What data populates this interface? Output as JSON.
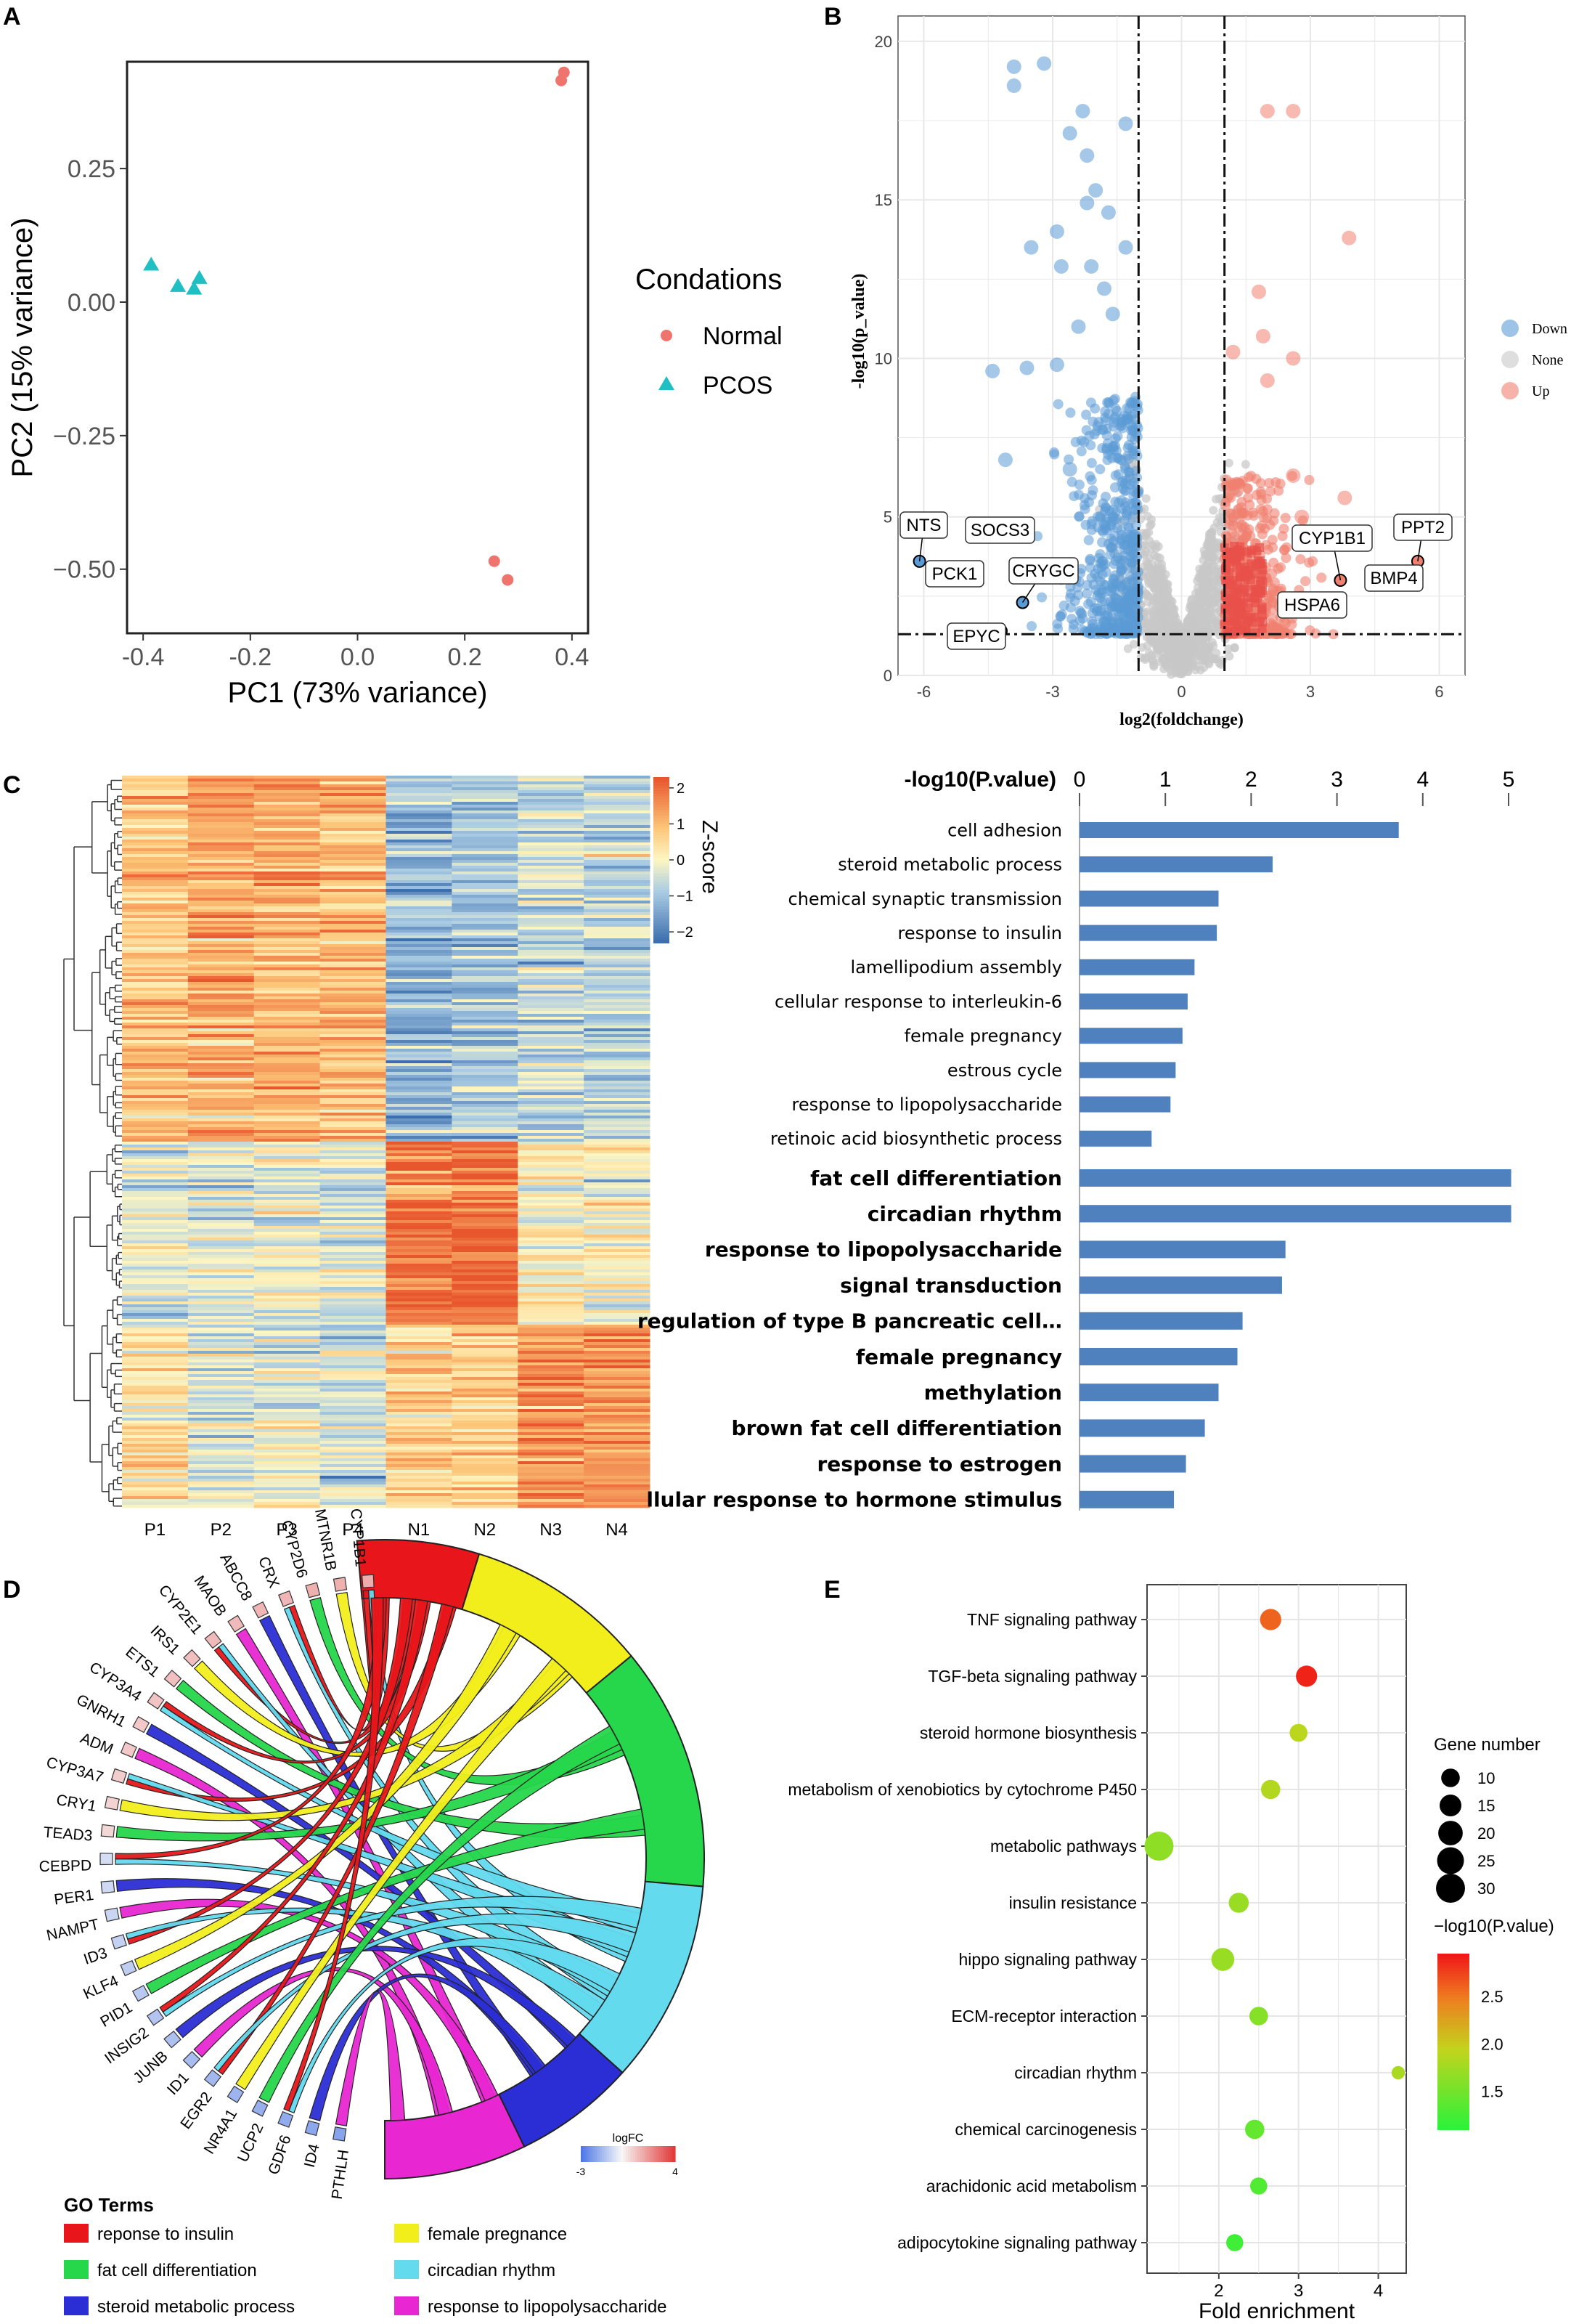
{
  "panel_letters": [
    "A",
    "B",
    "C",
    "D",
    "E"
  ],
  "chart_data": [
    {
      "panel": "A",
      "type": "scatter",
      "xlabel": "PC1 (73% variance)",
      "ylabel": "PC2 (15% variance)",
      "xlim": [
        -0.43,
        0.43
      ],
      "ylim": [
        -0.62,
        0.45
      ],
      "xticks": [
        -0.4,
        -0.2,
        0.0,
        0.2,
        0.4
      ],
      "xtick_labels": [
        "-0.4",
        "-0.2",
        "0.0",
        "0.2",
        "0.4"
      ],
      "yticks": [
        0.25,
        0.0,
        -0.25,
        -0.5
      ],
      "ytick_labels": [
        "0.25",
        "0.00",
        "−0.25",
        "−0.50"
      ],
      "legend_title": "Condations",
      "series": [
        {
          "name": "Normal",
          "shape": "circle",
          "color": "#F0746E",
          "points": [
            [
              0.385,
              0.43
            ],
            [
              0.38,
              0.415
            ],
            [
              0.255,
              -0.485
            ],
            [
              0.28,
              -0.52
            ]
          ]
        },
        {
          "name": "PCOS",
          "shape": "triangle",
          "color": "#1FBFC3",
          "points": [
            [
              -0.385,
              0.07
            ],
            [
              -0.335,
              0.03
            ],
            [
              -0.305,
              0.025
            ],
            [
              -0.295,
              0.045
            ]
          ]
        }
      ]
    },
    {
      "panel": "B",
      "type": "scatter",
      "xlabel": "log2(foldchange)",
      "ylabel": "-log10(p_value)",
      "xlim": [
        -6.6,
        6.6
      ],
      "ylim": [
        0,
        20.8
      ],
      "xticks": [
        -6,
        -3,
        0,
        3,
        6
      ],
      "xtick_labels": [
        "-6",
        "-3",
        "0",
        "3",
        "6"
      ],
      "yticks": [
        0,
        5,
        10,
        15,
        20
      ],
      "ytick_labels": [
        "0",
        "5",
        "10",
        "15",
        "20"
      ],
      "thresholds": {
        "x": [
          -1,
          1
        ],
        "y": 1.3
      },
      "legend": [
        {
          "name": "Down",
          "color": "#5B9BD5"
        },
        {
          "name": "None",
          "color": "#C8C8C8"
        },
        {
          "name": "Up",
          "color": "#F08070"
        }
      ],
      "labeled_genes": [
        {
          "gene": "NTS",
          "x": -6.1,
          "y": 3.6
        },
        {
          "gene": "SOCS3",
          "x": -3.8,
          "y": 4.7
        },
        {
          "gene": "PCK1",
          "x": -5.4,
          "y": 3.3
        },
        {
          "gene": "CRYGC",
          "x": -3.7,
          "y": 2.3
        },
        {
          "gene": "EPYC",
          "x": -4.2,
          "y": 1.4
        },
        {
          "gene": "CYP1B1",
          "x": 3.7,
          "y": 3.0
        },
        {
          "gene": "PPT2",
          "x": 5.5,
          "y": 3.6
        },
        {
          "gene": "BMP4",
          "x": 4.7,
          "y": 3.2
        },
        {
          "gene": "HSPA6",
          "x": 3.6,
          "y": 2.3
        }
      ],
      "highlight_points": [
        [
          -3.9,
          19.2
        ],
        [
          -3.2,
          19.3
        ],
        [
          -3.9,
          18.6
        ],
        [
          -2.3,
          17.8
        ],
        [
          -1.3,
          17.4
        ],
        [
          -2.6,
          17.1
        ],
        [
          -2.2,
          16.4
        ],
        [
          -2.0,
          15.3
        ],
        [
          -2.2,
          14.9
        ],
        [
          -1.7,
          14.6
        ],
        [
          -2.9,
          14.0
        ],
        [
          -1.3,
          13.5
        ],
        [
          -3.5,
          13.5
        ],
        [
          -2.8,
          12.9
        ],
        [
          -2.1,
          12.9
        ],
        [
          -1.8,
          12.2
        ],
        [
          -1.6,
          11.4
        ],
        [
          -2.4,
          11.0
        ],
        [
          -4.4,
          9.6
        ],
        [
          -3.6,
          9.7
        ],
        [
          -2.9,
          9.8
        ],
        [
          -4.1,
          6.8
        ],
        [
          -2.6,
          6.5
        ],
        [
          2.0,
          17.8
        ],
        [
          2.6,
          17.8
        ],
        [
          3.9,
          13.8
        ],
        [
          1.8,
          12.1
        ],
        [
          1.9,
          10.7
        ],
        [
          2.0,
          9.3
        ],
        [
          1.2,
          10.2
        ],
        [
          2.6,
          10.0
        ],
        [
          3.8,
          5.6
        ],
        [
          2.6,
          6.3
        ],
        [
          2.8,
          5.0
        ]
      ]
    },
    {
      "panel": "C-heatmap",
      "type": "heatmap",
      "columns": [
        "P1",
        "P2",
        "P3",
        "P4",
        "N1",
        "N2",
        "N3",
        "N4"
      ],
      "colorbar_title": "Z-score",
      "colorbar_ticks": [
        "2",
        "1",
        "0",
        "−1",
        "−2"
      ],
      "colorbar_range": [
        -2.3,
        2.3
      ],
      "blocks": [
        {
          "rows_fraction": 0.5,
          "means": [
            0.9,
            1.2,
            1.1,
            1.0,
            -1.2,
            -1.0,
            -0.6,
            -0.7
          ]
        },
        {
          "rows_fraction": 0.25,
          "means": [
            -0.3,
            -0.4,
            -0.2,
            -0.3,
            1.9,
            2.0,
            0.1,
            0.0
          ]
        },
        {
          "rows_fraction": 0.25,
          "means": [
            0.3,
            -0.4,
            -0.2,
            -0.5,
            0.6,
            0.5,
            1.5,
            1.5
          ]
        }
      ]
    },
    {
      "panel": "C-bars",
      "type": "bar",
      "orientation": "horizontal",
      "xlabel": "-log10(P.value)",
      "xlim": [
        0,
        5
      ],
      "xticks": [
        "0",
        "1",
        "2",
        "3",
        "4",
        "5"
      ],
      "color": "#4E81BD",
      "groups": [
        {
          "categories": [
            "cell adhesion",
            "steroid metabolic process",
            "chemical synaptic transmission",
            "response to insulin",
            "lamellipodium assembly",
            "cellular response to interleukin-6",
            "female pregnancy",
            "estrous cycle",
            "response to lipopolysaccharide",
            "retinoic acid biosynthetic process"
          ],
          "values": [
            3.72,
            2.25,
            1.62,
            1.6,
            1.34,
            1.26,
            1.2,
            1.12,
            1.06,
            0.84
          ]
        },
        {
          "categories": [
            "fat cell differentiation",
            "circadian rhythm",
            "response to lipopolysaccharide",
            "signal transduction",
            "regulation of type B pancreatic cell…",
            "female pregnancy",
            "methylation",
            "brown fat cell differentiation",
            "response to estrogen",
            "llular response to hormone stimulus"
          ],
          "values": [
            5.03,
            5.03,
            2.4,
            2.36,
            1.9,
            1.84,
            1.62,
            1.46,
            1.24,
            1.1
          ]
        }
      ]
    },
    {
      "panel": "D",
      "type": "chord",
      "genes": [
        "CYP1B1",
        "MTNR1B",
        "CYP2D6",
        "CRX",
        "ABCC8",
        "MAOB",
        "CYP2E1",
        "IRS1",
        "ETS1",
        "CYP3A4",
        "GNRH1",
        "ADM",
        "CYP3A7",
        "CRY1",
        "TEAD3",
        "CEBPD",
        "PER1",
        "NAMPT",
        "ID3",
        "KLF4",
        "PID1",
        "INSIG2",
        "JUNB",
        "ID1",
        "EGR2",
        "NR4A1",
        "UCP2",
        "GDF6",
        "ID4",
        "PTHLH"
      ],
      "logFC": [
        1.6,
        1.5,
        1.5,
        1.4,
        1.4,
        1.3,
        1.3,
        1.2,
        1.2,
        1.1,
        1.0,
        1.0,
        0.9,
        0.8,
        0.7,
        -0.6,
        -0.7,
        -0.8,
        -0.9,
        -1.0,
        -1.1,
        -1.2,
        -1.3,
        -1.4,
        -1.5,
        -1.6,
        -1.7,
        -1.8,
        -1.9,
        -2.0
      ],
      "logfc_legend": {
        "title": "logFC",
        "min_label": "-3",
        "max_label": "4"
      },
      "terms_legend_title": "GO Terms",
      "terms": [
        {
          "name": "reponse to insulin",
          "color": "#E8161A",
          "share": 0.12
        },
        {
          "name": "female pregnance",
          "color": "#F2EE1C",
          "share": 0.18
        },
        {
          "name": "fat cell differentiation",
          "color": "#26D64B",
          "share": 0.24
        },
        {
          "name": "circadian rhythm",
          "color": "#63DAEE",
          "share": 0.2
        },
        {
          "name": "steroid metabolic process",
          "color": "#2B2ED4",
          "share": 0.12
        },
        {
          "name": "response to lipopolysaccharide",
          "color": "#E827D2",
          "share": 0.14
        }
      ]
    },
    {
      "panel": "E",
      "type": "scatter",
      "subtype": "bubble",
      "xlabel": "Fold enrichment",
      "xlim": [
        1.1,
        4.35
      ],
      "xticks": [
        2,
        3,
        4
      ],
      "xtick_labels": [
        "2",
        "3",
        "4"
      ],
      "categories": [
        "TNF signaling pathway",
        "TGF-beta signaling pathway",
        "steroid hormone biosynthesis",
        "metabolism of xenobiotics by cytochrome P450",
        "metabolic pathways",
        "insulin resistance",
        "hippo signaling pathway",
        "ECM-receptor interaction",
        "circadian rhythm",
        "chemical carcinogenesis",
        "arachidonic acid metabolism",
        "adipocytokine signaling pathway"
      ],
      "fold_enrichment": [
        2.65,
        3.1,
        3.0,
        2.65,
        1.25,
        2.25,
        2.05,
        2.5,
        4.25,
        2.45,
        2.5,
        2.2
      ],
      "gene_number": [
        14,
        14,
        9,
        11,
        30,
        12,
        17,
        10,
        4,
        11,
        8,
        8
      ],
      "neg_log10_p": [
        2.6,
        2.9,
        1.9,
        1.85,
        1.65,
        1.7,
        1.7,
        1.6,
        1.8,
        1.4,
        1.3,
        1.2
      ],
      "size_legend_title": "Gene number",
      "size_legend": [
        "10",
        "15",
        "20",
        "25",
        "30"
      ],
      "color_legend_title": "−log10(P.value)",
      "color_legend_ticks": [
        "2.5",
        "2.0",
        "1.5"
      ],
      "color_range": [
        1.1,
        2.95
      ]
    }
  ]
}
